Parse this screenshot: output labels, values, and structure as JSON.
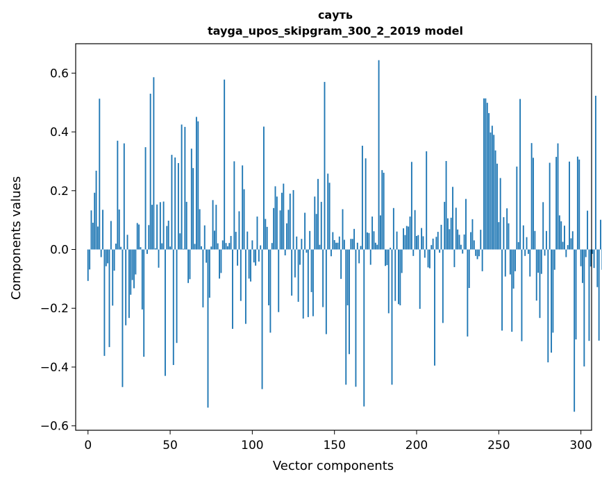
{
  "chart_data": {
    "type": "bar",
    "title": "сауть",
    "subtitle": "tayga_upos_skipgram_300_2_2019 model",
    "xlabel": "Vector components",
    "ylabel": "Components values",
    "xlim": [
      -7.5,
      306.5
    ],
    "ylim": [
      -0.615,
      0.7
    ],
    "xticks": [
      0,
      50,
      100,
      150,
      200,
      250,
      300
    ],
    "yticks": [
      -0.6,
      -0.4,
      -0.2,
      0.0,
      0.2,
      0.4,
      0.6
    ],
    "xtick_labels": [
      "0",
      "50",
      "100",
      "150",
      "200",
      "250",
      "300"
    ],
    "ytick_labels": [
      "−0.6",
      "−0.4",
      "−0.2",
      "0.0",
      "0.2",
      "0.4",
      "0.6"
    ],
    "grid": false,
    "bar_color": "#1f77b4",
    "values": [
      -0.107,
      -0.068,
      0.133,
      0.091,
      0.193,
      0.268,
      0.078,
      0.513,
      -0.026,
      0.135,
      -0.362,
      -0.057,
      -0.047,
      -0.332,
      0.097,
      -0.191,
      -0.072,
      0.02,
      0.37,
      0.136,
      0.009,
      -0.468,
      0.361,
      -0.258,
      0.05,
      -0.233,
      -0.154,
      -0.104,
      -0.132,
      -0.085,
      0.09,
      0.085,
      0.008,
      -0.204,
      -0.365,
      0.348,
      -0.015,
      0.083,
      0.53,
      0.152,
      0.586,
      0.004,
      0.153,
      -0.062,
      0.161,
      0.021,
      0.163,
      -0.43,
      0.08,
      0.098,
      0.01,
      0.322,
      -0.393,
      0.313,
      -0.318,
      0.294,
      0.055,
      0.425,
      0.002,
      0.417,
      0.162,
      -0.114,
      -0.101,
      0.343,
      0.277,
      0.019,
      0.451,
      0.436,
      0.137,
      0.011,
      -0.197,
      0.082,
      -0.045,
      -0.538,
      -0.164,
      0.01,
      0.168,
      0.064,
      0.152,
      0.021,
      -0.099,
      -0.08,
      0.031,
      0.578,
      0.022,
      0.011,
      0.022,
      0.046,
      -0.27,
      0.3,
      0.06,
      -0.055,
      0.13,
      -0.175,
      0.286,
      0.205,
      -0.253,
      0.061,
      -0.099,
      -0.109,
      0.031,
      -0.044,
      -0.055,
      0.112,
      -0.041,
      0.014,
      -0.475,
      0.418,
      0.104,
      0.077,
      -0.19,
      -0.283,
      0.022,
      0.141,
      0.215,
      0.18,
      -0.213,
      0.133,
      0.193,
      0.224,
      -0.02,
      0.089,
      0.135,
      0.19,
      -0.157,
      0.202,
      -0.095,
      0.044,
      -0.178,
      -0.052,
      0.036,
      -0.235,
      0.125,
      -0.011,
      -0.23,
      0.063,
      -0.145,
      -0.227,
      0.18,
      0.121,
      0.24,
      0.016,
      0.162,
      -0.196,
      0.57,
      -0.288,
      0.258,
      0.227,
      -0.023,
      0.059,
      0.032,
      0.023,
      0.023,
      0.044,
      -0.1,
      0.137,
      0.033,
      -0.46,
      -0.19,
      -0.356,
      0.036,
      0.036,
      0.07,
      -0.467,
      0.023,
      -0.047,
      0.012,
      0.353,
      -0.534,
      0.31,
      0.058,
      0.056,
      -0.052,
      0.112,
      0.062,
      0.023,
      0.016,
      0.644,
      0.116,
      0.27,
      0.261,
      -0.056,
      -0.053,
      -0.217,
      0.006,
      -0.46,
      0.141,
      -0.175,
      0.061,
      -0.186,
      -0.19,
      -0.08,
      0.072,
      0.049,
      0.08,
      0.078,
      0.112,
      0.298,
      -0.022,
      0.134,
      0.046,
      0.049,
      -0.202,
      0.073,
      0.045,
      -0.028,
      0.334,
      -0.061,
      -0.064,
      0.015,
      0.037,
      -0.395,
      0.043,
      0.06,
      -0.011,
      0.084,
      -0.25,
      0.162,
      0.301,
      0.106,
      0.069,
      0.108,
      0.213,
      -0.06,
      0.142,
      0.068,
      0.05,
      0.016,
      -0.014,
      0.051,
      0.172,
      -0.296,
      -0.131,
      0.059,
      0.103,
      0.031,
      -0.022,
      -0.033,
      -0.023,
      0.067,
      -0.074,
      0.514,
      0.514,
      0.499,
      0.464,
      0.398,
      0.421,
      0.39,
      0.337,
      0.292,
      0.093,
      0.243,
      -0.276,
      0.11,
      -0.092,
      0.14,
      0.089,
      -0.085,
      -0.28,
      -0.133,
      -0.074,
      0.282,
      0.025,
      0.512,
      -0.312,
      0.082,
      -0.022,
      0.042,
      -0.015,
      -0.092,
      0.362,
      0.312,
      0.063,
      -0.174,
      -0.079,
      -0.233,
      -0.083,
      0.161,
      -0.021,
      0.063,
      -0.384,
      0.295,
      -0.351,
      -0.283,
      -0.069,
      0.315,
      0.361,
      0.116,
      0.096,
      0.026,
      0.081,
      -0.026,
      0.015,
      0.299,
      0.038,
      0.062,
      -0.552,
      -0.306,
      0.316,
      0.306,
      -0.057,
      -0.114,
      -0.398,
      -0.026,
      0.132,
      -0.311,
      -0.058,
      -0.015,
      -0.063,
      0.523,
      -0.128,
      -0.31,
      0.101,
      -0.069,
      0.083
    ]
  }
}
